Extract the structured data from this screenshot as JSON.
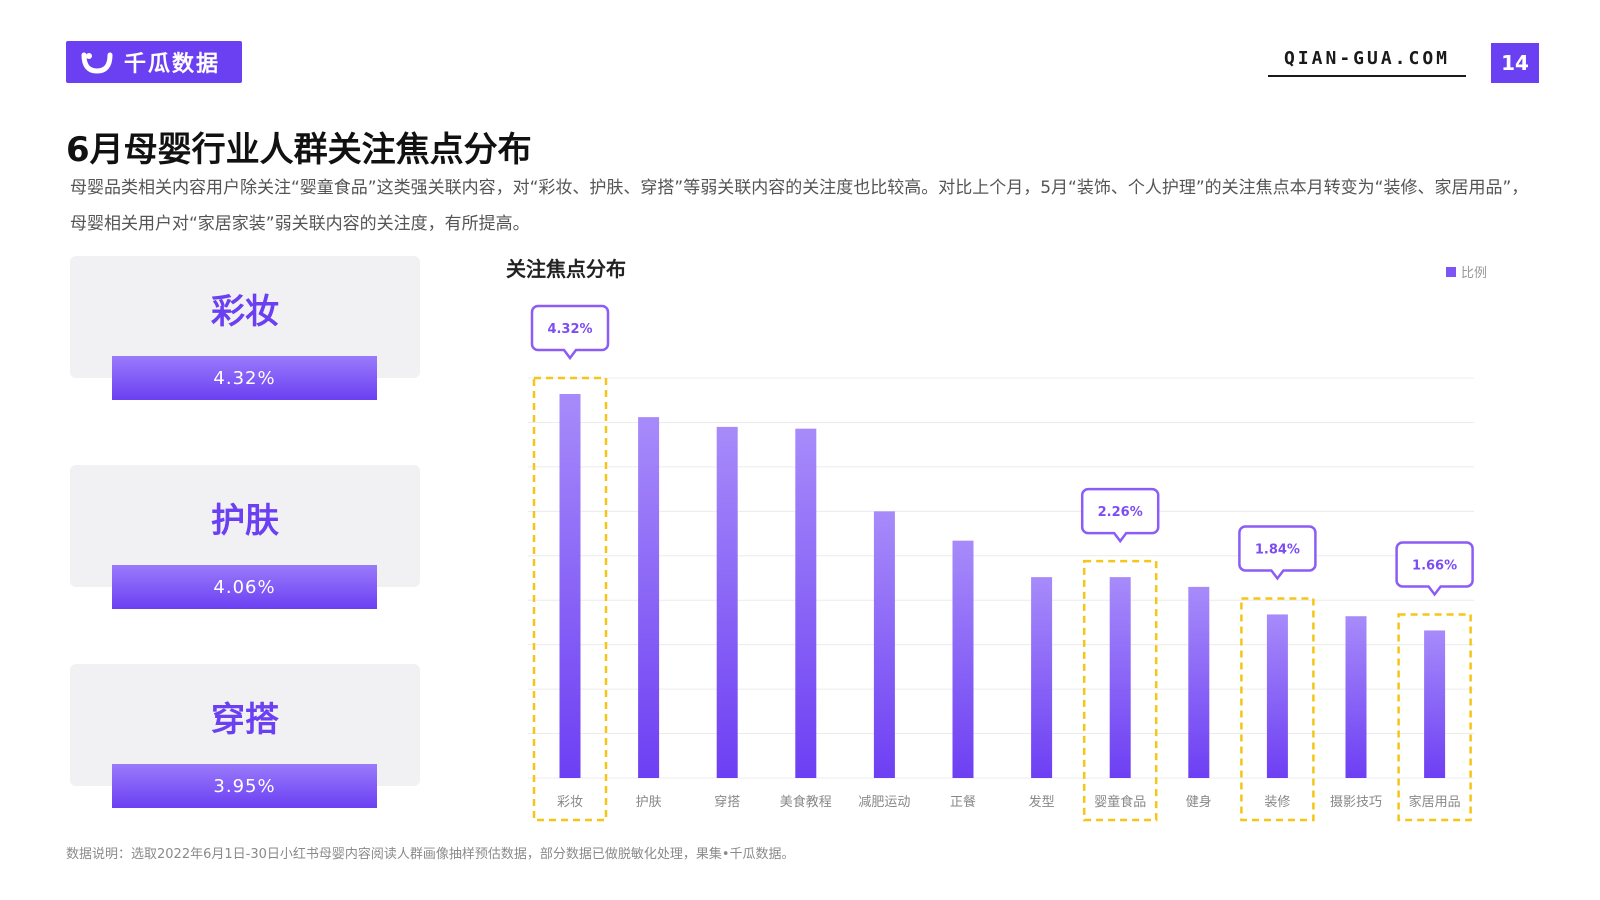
{
  "header": {
    "logo_text": "千瓜数据",
    "site": "QIAN-GUA.COM",
    "page_number": "14"
  },
  "title": "6月母婴行业人群关注焦点分布",
  "description": "母婴品类相关内容用户除关注“婴童食品”这类强关联内容，对“彩妆、护肤、穿搭”等弱关联内容的关注度也比较高。对比上个月，5月“装饰、个人护理”的关注焦点本月转变为“装修、家居用品”，母婴相关用户对“家居家装”弱关联内容的关注度，有所提高。",
  "cards": [
    {
      "label": "彩妆",
      "value": "4.32%"
    },
    {
      "label": "护肤",
      "value": "4.06%"
    },
    {
      "label": "穿搭",
      "value": "3.95%"
    }
  ],
  "chart_data": {
    "type": "bar",
    "title": "关注焦点分布",
    "legend": "比例",
    "legend_position": "top-right",
    "categories": [
      "彩妆",
      "护肤",
      "穿搭",
      "美食教程",
      "减肥运动",
      "正餐",
      "发型",
      "婴童食品",
      "健身",
      "装修",
      "摄影技巧",
      "家居用品"
    ],
    "series": [
      {
        "name": "比例",
        "values": [
          4.32,
          4.06,
          3.95,
          3.93,
          3.0,
          2.67,
          2.26,
          2.26,
          2.15,
          1.84,
          1.82,
          1.66
        ]
      }
    ],
    "ylim": [
      0,
      4.5
    ],
    "grid": true,
    "highlighted": [
      "彩妆",
      "婴童食品",
      "装修",
      "家居用品"
    ],
    "callouts": [
      {
        "category": "彩妆",
        "label": "4.32%"
      },
      {
        "category": "婴童食品",
        "label": "2.26%"
      },
      {
        "category": "装修",
        "label": "1.84%"
      },
      {
        "category": "家居用品",
        "label": "1.66%"
      }
    ],
    "colors": {
      "bar_top": "#a78bfa",
      "bar_bottom": "#6d3ff3",
      "highlight": "#f5c518",
      "callout_border": "#8b5cf6"
    }
  },
  "footnote": "数据说明：选取2022年6月1日-30日小红书母婴内容阅读人群画像抽样预估数据，部分数据已做脱敏化处理，果集•千瓜数据。"
}
